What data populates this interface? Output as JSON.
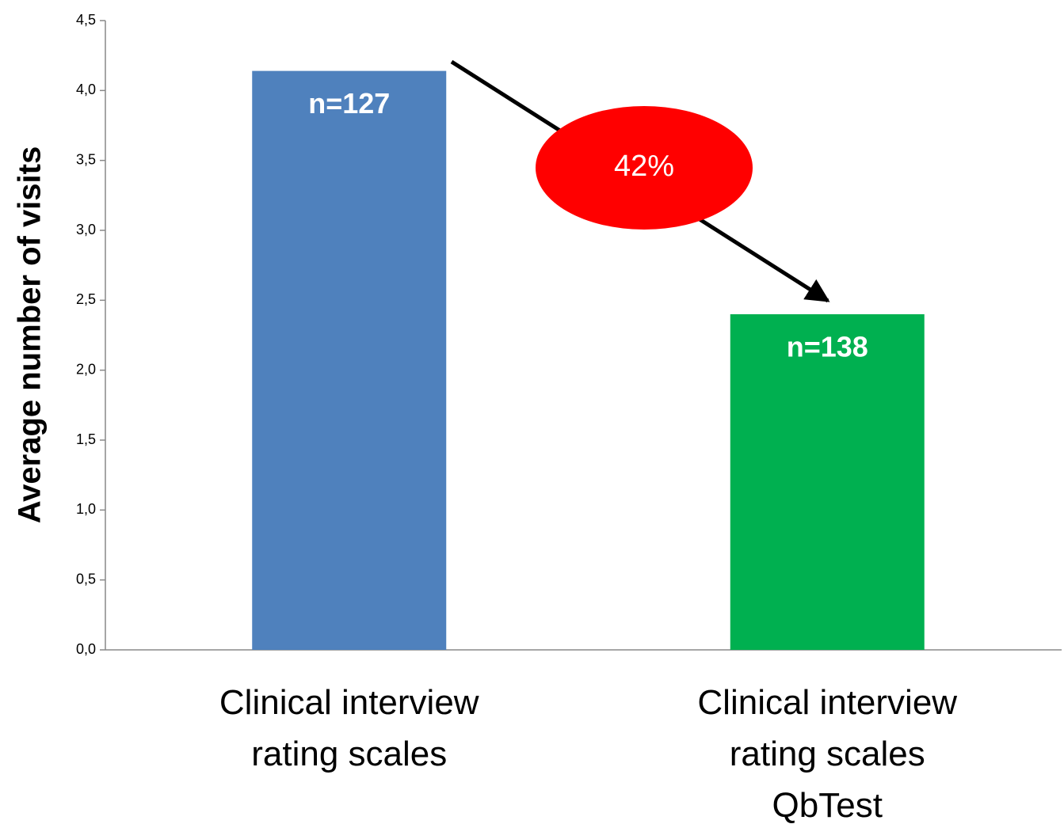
{
  "chart_data": {
    "type": "bar",
    "y_label": "Average number of visits",
    "categories": [
      [
        "Clinical interview",
        "rating scales"
      ],
      [
        "Clinical interview",
        "rating scales",
        "QbTest"
      ]
    ],
    "values": [
      4.14,
      2.4
    ],
    "colors": [
      "#4f81bd",
      "#00b050"
    ],
    "bar_labels": [
      "n=127",
      "n=138"
    ],
    "annotation": "42%",
    "annotation_color": "#ff0000",
    "ylim": [
      0,
      4.5
    ],
    "yticks": [
      {
        "value": 0,
        "label": "0,0"
      },
      {
        "value": 0.5,
        "label": "0,5"
      },
      {
        "value": 1,
        "label": "1,0"
      },
      {
        "value": 1.5,
        "label": "1,5"
      },
      {
        "value": 2,
        "label": "2,0"
      },
      {
        "value": 2.5,
        "label": "2,5"
      },
      {
        "value": 3,
        "label": "3,0"
      },
      {
        "value": 3.5,
        "label": "3,5"
      },
      {
        "value": 4,
        "label": "4,0"
      },
      {
        "value": 4.5,
        "label": "4,5"
      }
    ],
    "grid": false
  }
}
